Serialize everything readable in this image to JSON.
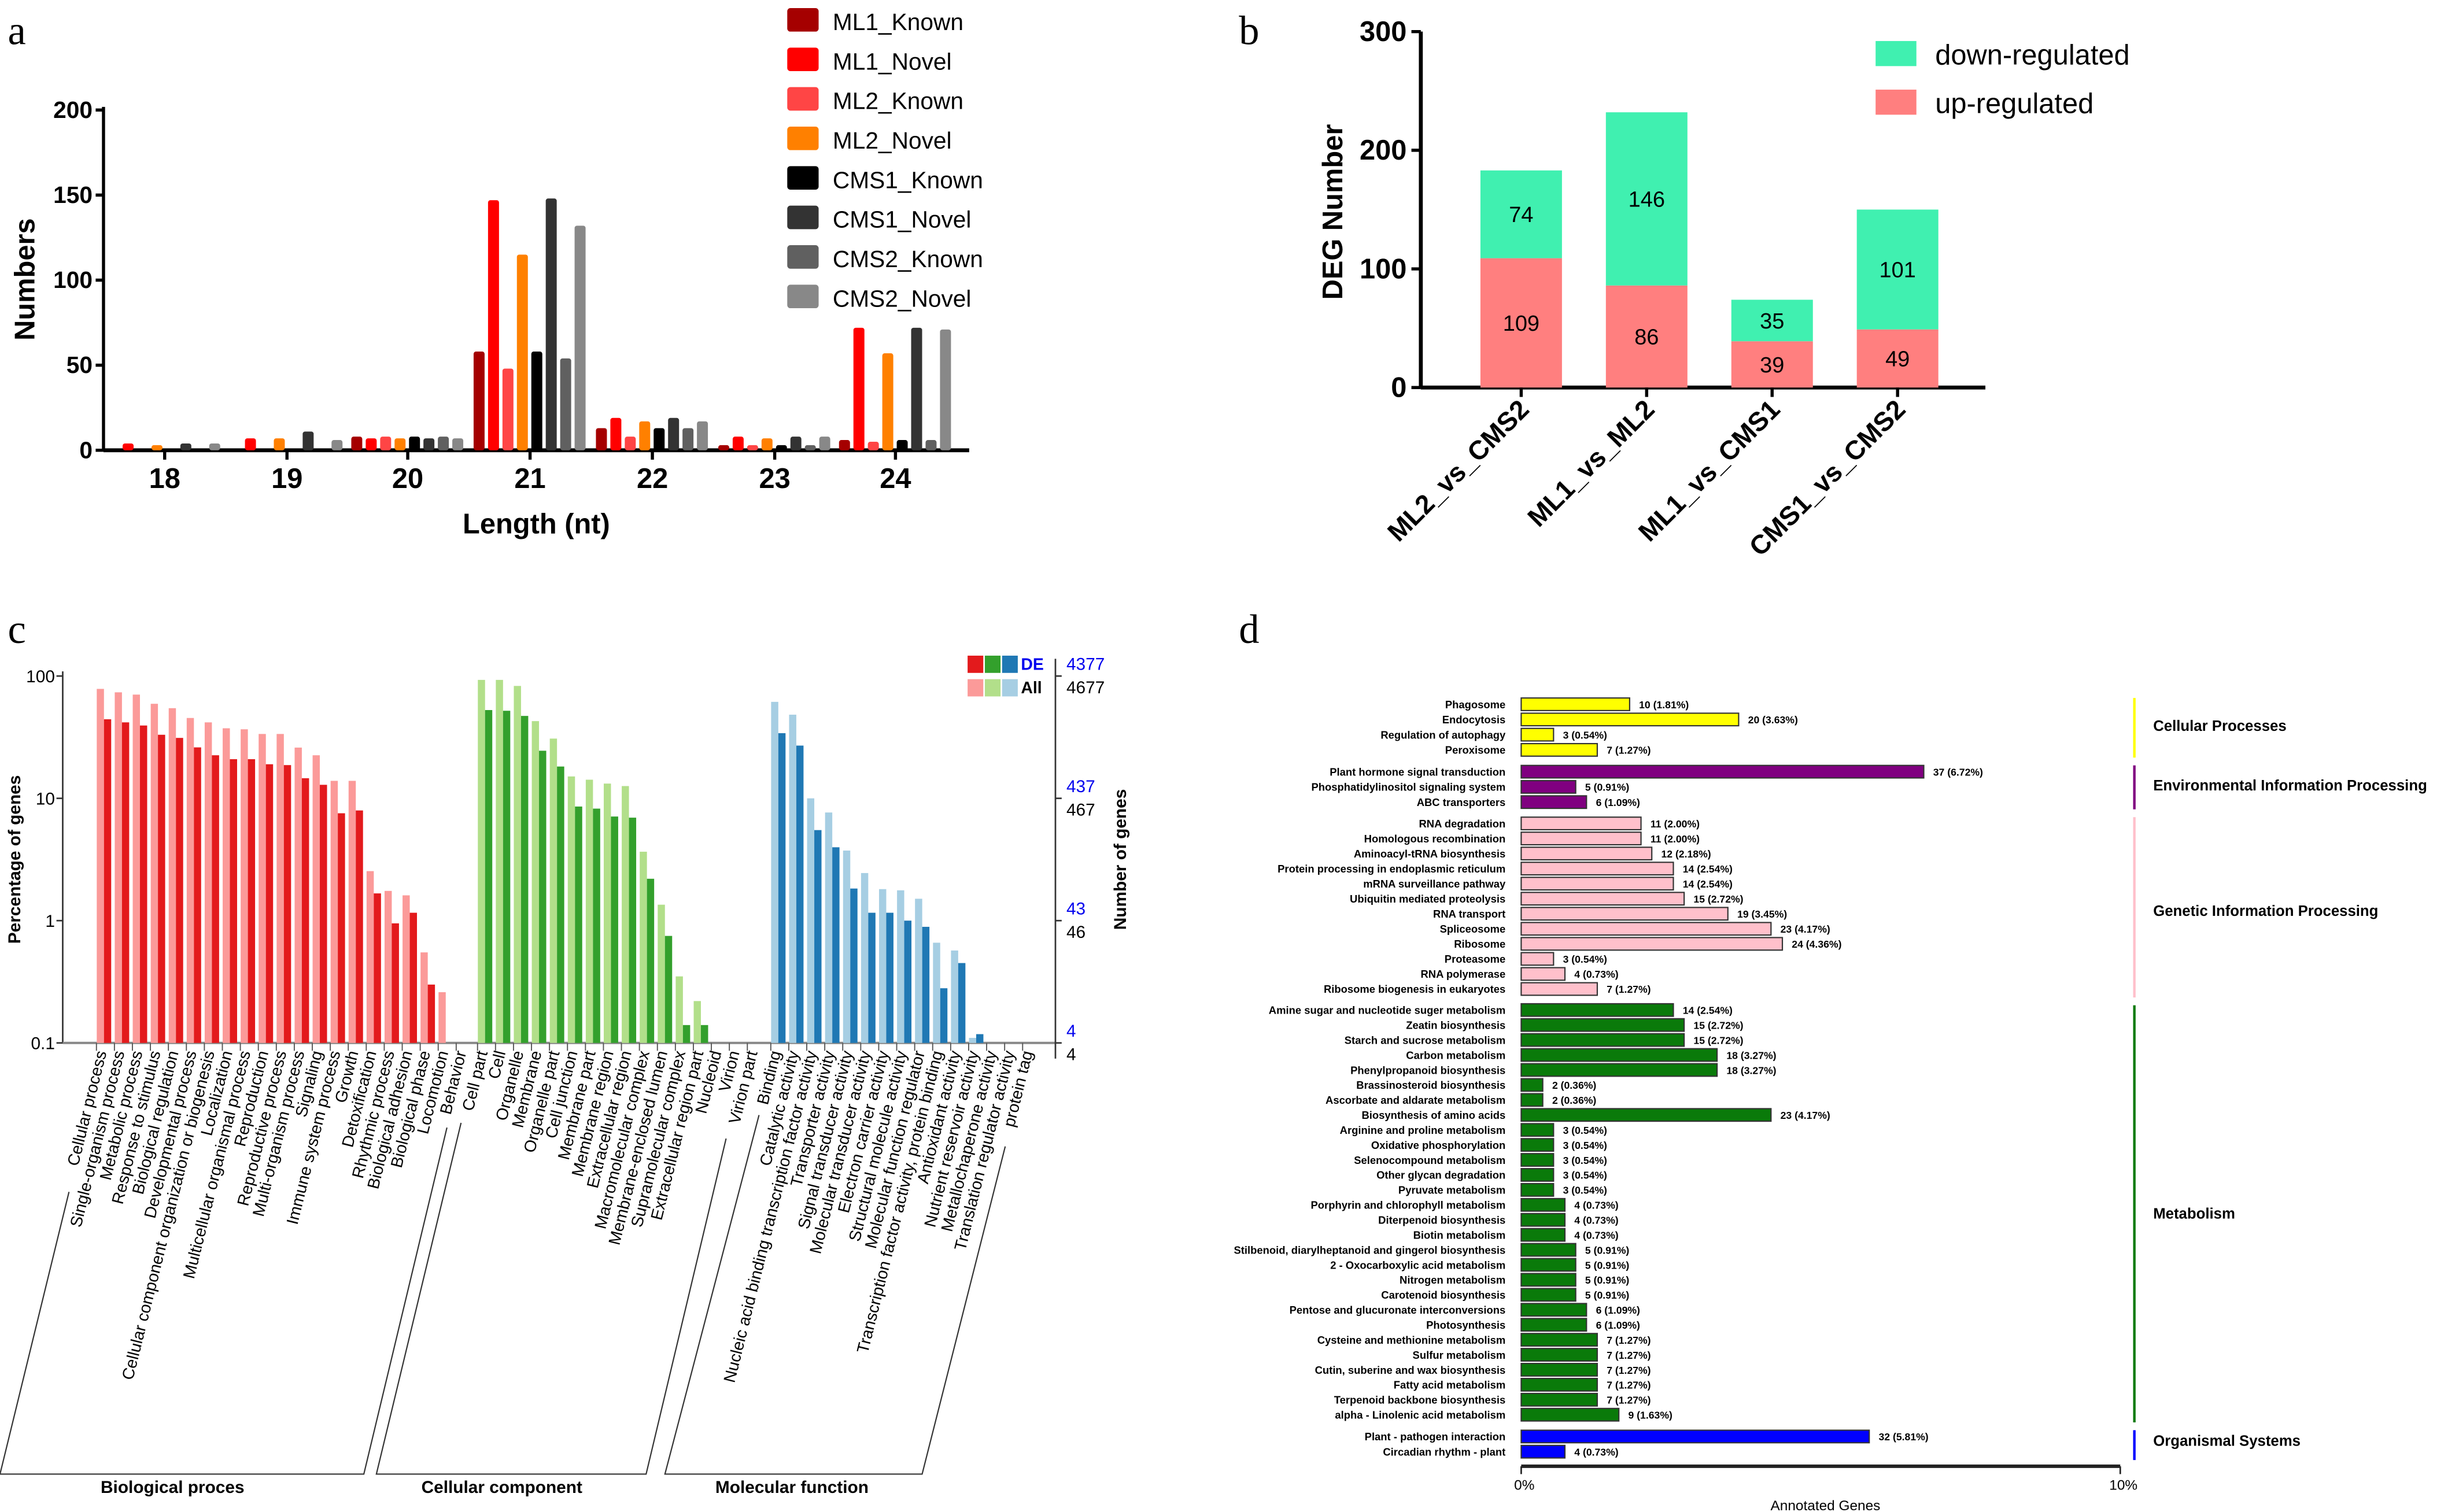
{
  "panels": {
    "a": "a",
    "b": "b",
    "c": "c",
    "d": "d"
  },
  "chart_data": [
    {
      "panel": "a",
      "type": "bar",
      "xlabel": "Length (nt)",
      "ylabel": "Numbers",
      "ylim": [
        0,
        200
      ],
      "yticks": [
        0,
        50,
        100,
        150,
        200
      ],
      "categories": [
        "18",
        "19",
        "20",
        "21",
        "22",
        "23",
        "24"
      ],
      "legend_position": "top-right",
      "series": [
        {
          "name": "ML1_Known",
          "color": "#a50000",
          "values": [
            0,
            0,
            8,
            58,
            13,
            3,
            6
          ]
        },
        {
          "name": "ML1_Novel",
          "color": "#ff0000",
          "values": [
            4,
            7,
            7,
            147,
            19,
            8,
            72
          ]
        },
        {
          "name": "ML2_Known",
          "color": "#ff4545",
          "values": [
            0,
            0,
            8,
            48,
            8,
            3,
            5
          ]
        },
        {
          "name": "ML2_Novel",
          "color": "#ff8000",
          "values": [
            3,
            7,
            7,
            115,
            17,
            7,
            57
          ]
        },
        {
          "name": "CMS1_Known",
          "color": "#000000",
          "values": [
            0,
            0,
            8,
            58,
            13,
            3,
            6
          ]
        },
        {
          "name": "CMS1_Novel",
          "color": "#333333",
          "values": [
            4,
            11,
            7,
            148,
            19,
            8,
            72
          ]
        },
        {
          "name": "CMS2_Known",
          "color": "#606060",
          "values": [
            0,
            0,
            8,
            54,
            13,
            3,
            6
          ]
        },
        {
          "name": "CMS2_Novel",
          "color": "#888888",
          "values": [
            4,
            6,
            7,
            132,
            17,
            8,
            71
          ]
        }
      ]
    },
    {
      "panel": "b",
      "type": "bar",
      "stacked": true,
      "ylabel": "DEG Number",
      "ylim": [
        0,
        300
      ],
      "yticks": [
        0,
        100,
        200,
        300
      ],
      "categories": [
        "ML2_vs_CMS2",
        "ML1_vs_ML2",
        "ML1_vs_CMS1",
        "CMS1_vs_CMS2"
      ],
      "legend_position": "top-right",
      "series": [
        {
          "name": "up-regulated",
          "color": "#ff7f7f",
          "values": [
            109,
            86,
            39,
            49
          ]
        },
        {
          "name": "down-regulated",
          "color": "#40f0b0",
          "values": [
            74,
            146,
            35,
            101
          ]
        }
      ]
    },
    {
      "panel": "c",
      "type": "bar",
      "ylabel": "Percentage of genes",
      "y2label": "Number of genes",
      "yscale": "log",
      "ylim": [
        0.1,
        100
      ],
      "yticks": [
        "100",
        "10",
        "1",
        "0.1"
      ],
      "y2ticks_de": [
        "4377",
        "437",
        "43",
        "4"
      ],
      "y2ticks_all": [
        "4677",
        "467",
        "46",
        "4"
      ],
      "legend": {
        "de": "DE",
        "all": "All"
      },
      "legend_position": "top-right",
      "groups": [
        {
          "name": "Biological proces",
          "de_color": "#e31a1c",
          "all_color": "#fb9a99",
          "categories": [
            "Cellular process",
            "Single-organism process",
            "Metabolic process",
            "Response to stimulus",
            "Biological regulation",
            "Developmental process",
            "Cellular component organization or biogenesis",
            "Localization",
            "Multicellular organismal process",
            "Reproduction",
            "Reproductive process",
            "Multi-organism process",
            "Signaling",
            "Immune system process",
            "Growth",
            "Detoxification",
            "Rhythmic process",
            "Biological adhesion",
            "Biological phase",
            "Locomotion",
            "Behavior"
          ],
          "all": [
            78.5,
            73.6,
            70.5,
            59.3,
            54.6,
            45.4,
            41.8,
            37.4,
            36.7,
            33.6,
            33.6,
            26.0,
            22.5,
            13.9,
            13.9,
            2.54,
            1.75,
            1.61,
            0.55,
            0.26,
            null
          ],
          "de": [
            44.3,
            41.8,
            39.4,
            33.1,
            31.2,
            26.1,
            22.5,
            20.9,
            20.9,
            19.0,
            18.7,
            14.6,
            12.9,
            7.55,
            7.96,
            1.67,
            0.95,
            1.16,
            0.3,
            null,
            null
          ]
        },
        {
          "name": "Cellular component",
          "de_color": "#33a02c",
          "all_color": "#b2df8a",
          "categories": [
            "Cell part",
            "Cell",
            "Organelle",
            "Membrane",
            "Organelle part",
            "Cell junction",
            "Membrane part",
            "Membrane region",
            "Extracellular region",
            "Macromolecular complex",
            "Membrane-enclosed lumen",
            "Supramolecular complex",
            "Extracellular region part",
            "Nucleoid",
            "Virion",
            "Virion part"
          ],
          "all": [
            93,
            93,
            83,
            42.8,
            30.8,
            15.1,
            14.2,
            13.2,
            12.6,
            3.66,
            1.35,
            0.35,
            0.22,
            null,
            null,
            null
          ],
          "de": [
            52.7,
            52,
            47.2,
            24.5,
            18.2,
            8.57,
            8.24,
            7.1,
            6.95,
            2.2,
            0.75,
            0.14,
            0.14,
            null,
            null,
            null
          ]
        },
        {
          "name": "Molecular function",
          "de_color": "#1f78b4",
          "all_color": "#a6cee3",
          "categories": [
            "Binding",
            "Catalytic activity",
            "Nucleic acid binding transcription factor activity",
            "Transporter activity",
            "Signal transducer activity",
            "Molecular transducer activity",
            "Electron carrier activity",
            "Structural molecule activity",
            "Molecular function regulator",
            "Transcription factor activity, protein binding",
            "Antioxidant activity",
            "Nutrient reservoir activity",
            "Metallochaperone activity",
            "Translation regulator activity",
            "protein tag"
          ],
          "all": [
            61.5,
            48.3,
            10.0,
            7.66,
            3.74,
            2.45,
            1.81,
            1.77,
            1.51,
            0.66,
            0.57,
            0.11,
            null,
            null,
            null
          ],
          "de": [
            34.1,
            27.0,
            5.5,
            3.98,
            1.83,
            1.16,
            1.16,
            1.0,
            0.89,
            0.28,
            0.45,
            0.118,
            null,
            null,
            null
          ]
        }
      ]
    },
    {
      "panel": "d",
      "type": "bar",
      "orientation": "horizontal",
      "xlabel": "Annotated Genes",
      "xlim": [
        0,
        10
      ],
      "xticks": [
        "0%",
        "10%"
      ],
      "groups": [
        {
          "name": "Cellular Processes",
          "color": "#ffff00",
          "items": [
            [
              "Phagosome",
              10,
              1.81,
              "10 (1.81%)"
            ],
            [
              "Endocytosis",
              20,
              3.63,
              "20 (3.63%)"
            ],
            [
              "Regulation of autophagy",
              3,
              0.54,
              "3 (0.54%)"
            ],
            [
              "Peroxisome",
              7,
              1.27,
              "7 (1.27%)"
            ]
          ]
        },
        {
          "name": "Environmental Information Processing",
          "color": "#800080",
          "items": [
            [
              "Plant hormone signal transduction",
              37,
              6.72,
              "37 (6.72%)"
            ],
            [
              "Phosphatidylinositol signaling system",
              5,
              0.91,
              "5 (0.91%)"
            ],
            [
              "ABC transporters",
              6,
              1.09,
              "6 (1.09%)"
            ]
          ]
        },
        {
          "name": "Genetic Information Processing",
          "color": "#ffc0cb",
          "items": [
            [
              "RNA degradation",
              11,
              2.0,
              "11 (2.00%)"
            ],
            [
              "Homologous recombination",
              11,
              2.0,
              "11 (2.00%)"
            ],
            [
              "Aminoacyl-tRNA biosynthesis",
              12,
              2.18,
              "12 (2.18%)"
            ],
            [
              "Protein processing in endoplasmic reticulum",
              14,
              2.54,
              "14 (2.54%)"
            ],
            [
              "mRNA surveillance pathway",
              14,
              2.54,
              "14 (2.54%)"
            ],
            [
              "Ubiquitin mediated proteolysis",
              15,
              2.72,
              "15 (2.72%)"
            ],
            [
              "RNA transport",
              19,
              3.45,
              "19 (3.45%)"
            ],
            [
              "Spliceosome",
              23,
              4.17,
              "23 (4.17%)"
            ],
            [
              "Ribosome",
              24,
              4.36,
              "24 (4.36%)"
            ],
            [
              "Proteasome",
              3,
              0.54,
              "3 (0.54%)"
            ],
            [
              "RNA polymerase",
              4,
              0.73,
              "4 (0.73%)"
            ],
            [
              "Ribosome biogenesis in eukaryotes",
              7,
              1.27,
              "7 (1.27%)"
            ]
          ]
        },
        {
          "name": "Metabolism",
          "color": "#0a7a0a",
          "items": [
            [
              "Amine sugar and nucleotide suger metabolism",
              14,
              2.54,
              "14 (2.54%)"
            ],
            [
              "Zeatin biosynthesis",
              15,
              2.72,
              "15 (2.72%)"
            ],
            [
              "Starch and sucrose metabolism",
              15,
              2.72,
              "15 (2.72%)"
            ],
            [
              "Carbon metabolism",
              18,
              3.27,
              "18 (3.27%)"
            ],
            [
              "Phenylpropanoid biosynthesis",
              18,
              3.27,
              "18 (3.27%)"
            ],
            [
              "Brassinosteroid biosynthesis",
              2,
              0.36,
              "2 (0.36%)"
            ],
            [
              "Ascorbate and aldarate metabolism",
              2,
              0.36,
              "2 (0.36%)"
            ],
            [
              "Biosynthesis of amino acids",
              23,
              4.17,
              "23 (4.17%)"
            ],
            [
              "Arginine and proline metabolism",
              3,
              0.54,
              "3 (0.54%)"
            ],
            [
              "Oxidative phosphorylation",
              3,
              0.54,
              "3 (0.54%)"
            ],
            [
              "Selenocompound metabolism",
              3,
              0.54,
              "3 (0.54%)"
            ],
            [
              "Other glycan degradation",
              3,
              0.54,
              "3 (0.54%)"
            ],
            [
              "Pyruvate metabolism",
              3,
              0.54,
              "3 (0.54%)"
            ],
            [
              "Porphyrin and chlorophyll metabolism",
              4,
              0.73,
              "4 (0.73%)"
            ],
            [
              "Diterpenoid biosynthesis",
              4,
              0.73,
              "4 (0.73%)"
            ],
            [
              "Biotin metabolism",
              4,
              0.73,
              "4 (0.73%)"
            ],
            [
              "Stilbenoid, diarylheptanoid and gingerol biosynthesis",
              5,
              0.91,
              "5 (0.91%)"
            ],
            [
              "2 - Oxocarboxylic acid metabolism",
              5,
              0.91,
              "5 (0.91%)"
            ],
            [
              "Nitrogen metabolism",
              5,
              0.91,
              "5 (0.91%)"
            ],
            [
              "Carotenoid biosynthesis",
              5,
              0.91,
              "5 (0.91%)"
            ],
            [
              "Pentose and glucuronate interconversions",
              6,
              1.09,
              "6 (1.09%)"
            ],
            [
              "Photosynthesis",
              6,
              1.09,
              "6 (1.09%)"
            ],
            [
              "Cysteine and methionine metabolism",
              7,
              1.27,
              "7 (1.27%)"
            ],
            [
              "Sulfur metabolism",
              7,
              1.27,
              "7 (1.27%)"
            ],
            [
              "Cutin, suberine and wax biosynthesis",
              7,
              1.27,
              "7 (1.27%)"
            ],
            [
              "Fatty acid metabolism",
              7,
              1.27,
              "7 (1.27%)"
            ],
            [
              "Terpenoid backbone biosynthesis",
              7,
              1.27,
              "7 (1.27%)"
            ],
            [
              "alpha - Linolenic acid metabolism",
              9,
              1.63,
              "9 (1.63%)"
            ]
          ]
        },
        {
          "name": "Organismal Systems",
          "color": "#0000ff",
          "items": [
            [
              "Plant - pathogen interaction",
              32,
              5.81,
              "32 (5.81%)"
            ],
            [
              "Circadian rhythm - plant",
              4,
              0.73,
              "4 (0.73%)"
            ]
          ]
        }
      ]
    }
  ]
}
